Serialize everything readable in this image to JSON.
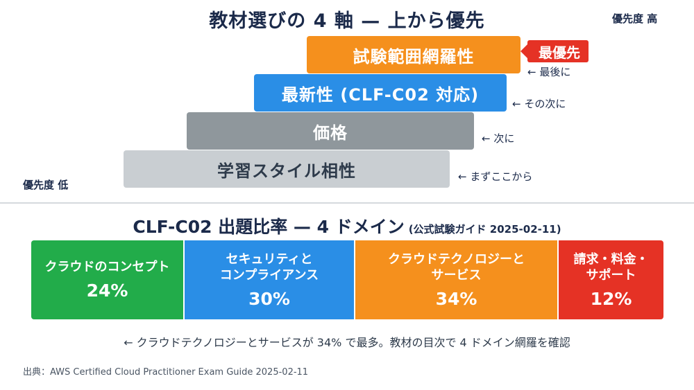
{
  "title": "教材選びの 4 軸 — 上から優先",
  "priority_high": "優先度 高",
  "priority_low": "優先度 低",
  "axes": [
    {
      "label": "試験範囲網羅性",
      "note": "← 最後に",
      "color": "#f5901d"
    },
    {
      "label": "最新性 (CLF-C02 対応)",
      "note": "← その次に",
      "color": "#2a8ee6"
    },
    {
      "label": "価格",
      "note": "← 次に",
      "color": "#8f979c"
    },
    {
      "label": "学習スタイル相性",
      "note": "← まずここから",
      "color": "#c9ced2"
    }
  ],
  "top_badge": "最優先",
  "exam": {
    "title": "CLF-C02 出題比率 — 4 ドメイン",
    "title_note": "(公式試験ガイド 2025-02-11)",
    "domains": [
      {
        "name": "クラウドのコンセプト",
        "percent": "24%",
        "color": "#22ac4a"
      },
      {
        "name": "セキュリティと\nコンプライアンス",
        "percent": "30%",
        "color": "#2a8ee6"
      },
      {
        "name": "クラウドテクノロジーと\nサービス",
        "percent": "34%",
        "color": "#f5901d"
      },
      {
        "name": "請求・料金・\nサポート",
        "percent": "12%",
        "color": "#e53225"
      }
    ]
  },
  "footnote": "← クラウドテクノロジーとサービスが 34% で最多。教材の目次で 4 ドメイン網羅を確認",
  "source": "出典：AWS Certified Cloud Practitioner Exam Guide 2025-02-11"
}
